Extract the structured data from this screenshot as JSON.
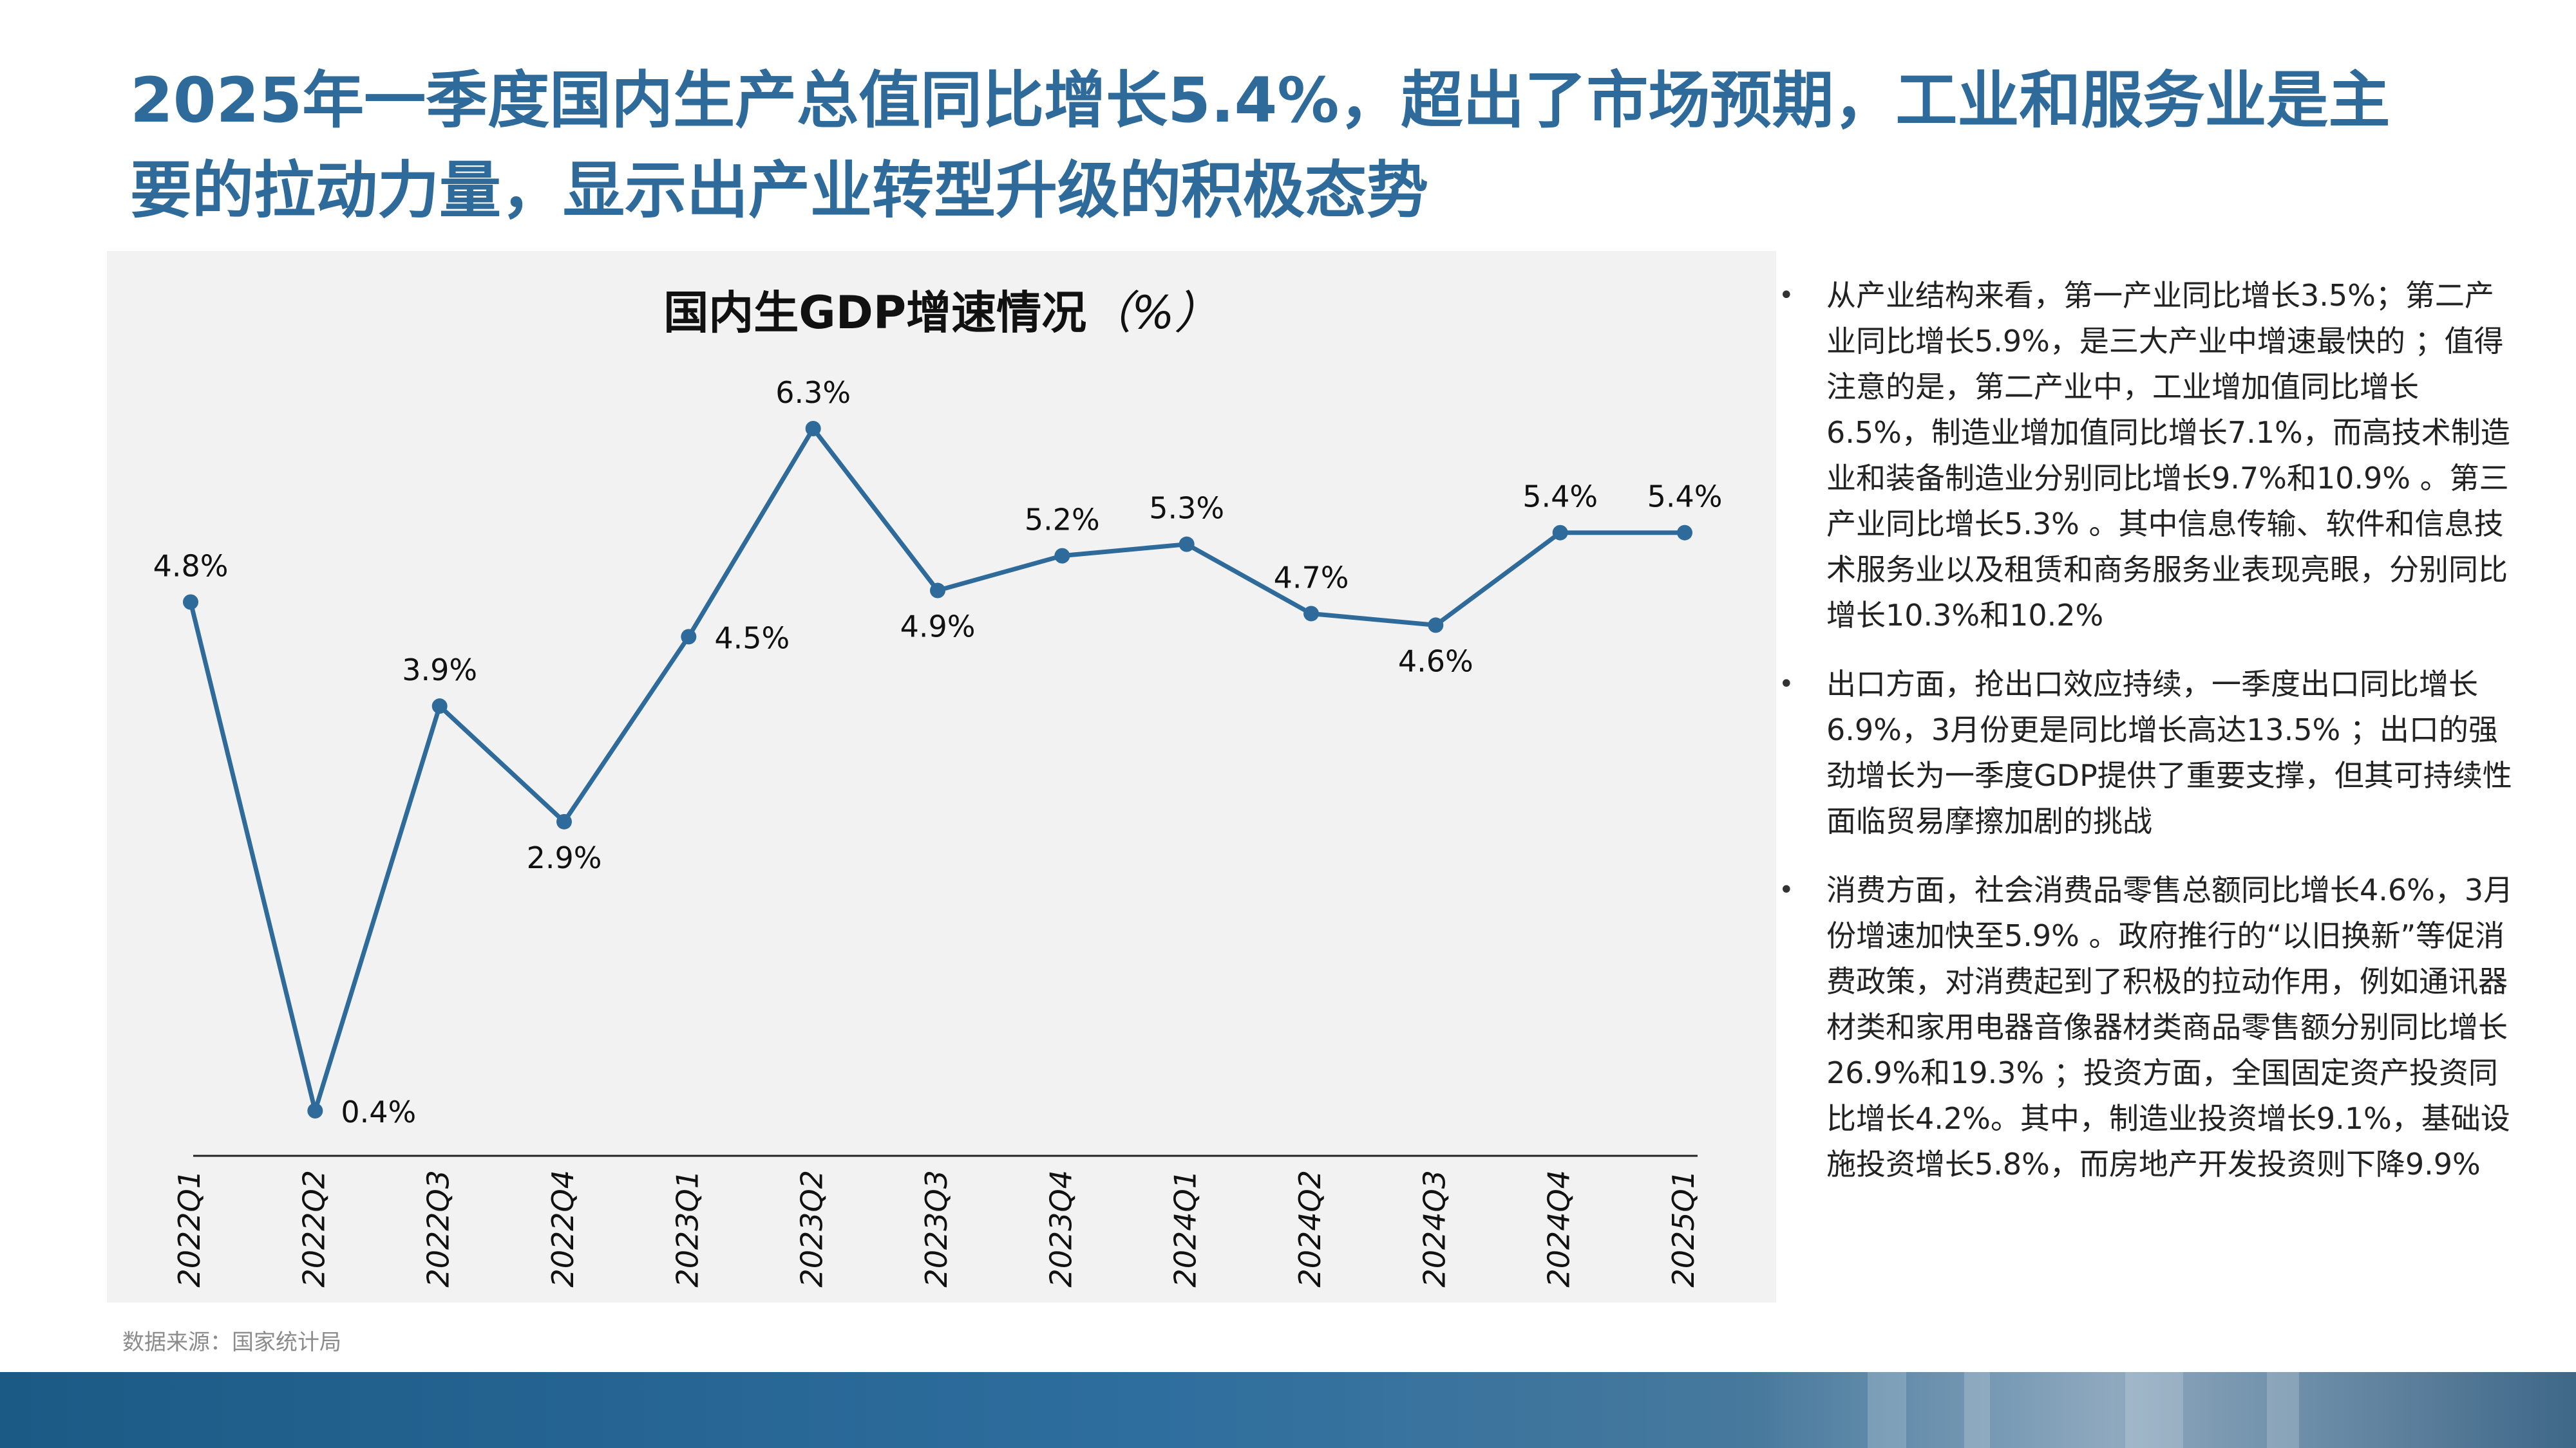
{
  "title": "2025年一季度国内生产总值同比增长5.4%，超出了市场预期，工业和服务业是主要的拉动力量，显示出产业转型升级的积极态势",
  "chart_title": "国内生GDP增速情况",
  "chart_title_unit": "（%）",
  "chart_data": {
    "type": "line",
    "title": "国内生GDP增速情况（%）",
    "xlabel": "",
    "ylabel": "",
    "categories": [
      "2022Q1",
      "2022Q2",
      "2022Q3",
      "2022Q4",
      "2023Q1",
      "2023Q2",
      "2023Q3",
      "2023Q4",
      "2024Q1",
      "2024Q2",
      "2024Q3",
      "2024Q4",
      "2025Q1"
    ],
    "series": [
      {
        "values": [
          4.8,
          0.4,
          3.9,
          2.9,
          4.5,
          6.3,
          4.9,
          5.2,
          5.3,
          4.7,
          4.6,
          5.4,
          5.4
        ]
      }
    ],
    "value_labels": [
      "4.8%",
      "0.4%",
      "3.9%",
      "2.9%",
      "4.5%",
      "6.3%",
      "4.9%",
      "5.2%",
      "5.3%",
      "4.7%",
      "4.6%",
      "5.4%",
      "5.4%"
    ],
    "label_positions": [
      "above",
      "right",
      "above",
      "below",
      "right",
      "above",
      "below",
      "above",
      "above",
      "above",
      "below",
      "above",
      "above"
    ],
    "ylim": [
      0.4,
      6.3
    ],
    "grid": false,
    "legend": "none",
    "line_color": "#2E6A9A"
  },
  "bullets": [
    "从产业结构来看，第一产业同比增长3.5%；第二产业同比增长5.9%，是三大产业中增速最快的 ；值得注意的是，第二产业中，工业增加值同比增长6.5%，制造业增加值同比增长7.1%，而高技术制造业和装备制造业分别同比增长9.7%和10.9% 。第三产业同比增长5.3% 。其中信息传输、软件和信息技术服务业以及租赁和商务服务业表现亮眼，分别同比增长10.3%和10.2%",
    "出口方面，抢出口效应持续，一季度出口同比增长6.9%，3月份更是同比增长高达13.5% ；出口的强劲增长为一季度GDP提供了重要支撑，但其可持续性面临贸易摩擦加剧的挑战",
    "消费方面，社会消费品零售总额同比增长4.6%，3月份增速加快至5.9% 。政府推行的“以旧换新”等促消费政策，对消费起到了积极的拉动作用，例如通讯器材类和家用电器音像器材类商品零售额分别同比增长26.9%和19.3% ；投资方面，全国固定资产投资同比增长4.2%。其中，制造业投资增长9.1%，基础设施投资增长5.8%，而房地产开发投资则下降9.9%"
  ],
  "source": "数据来源：国家统计局"
}
